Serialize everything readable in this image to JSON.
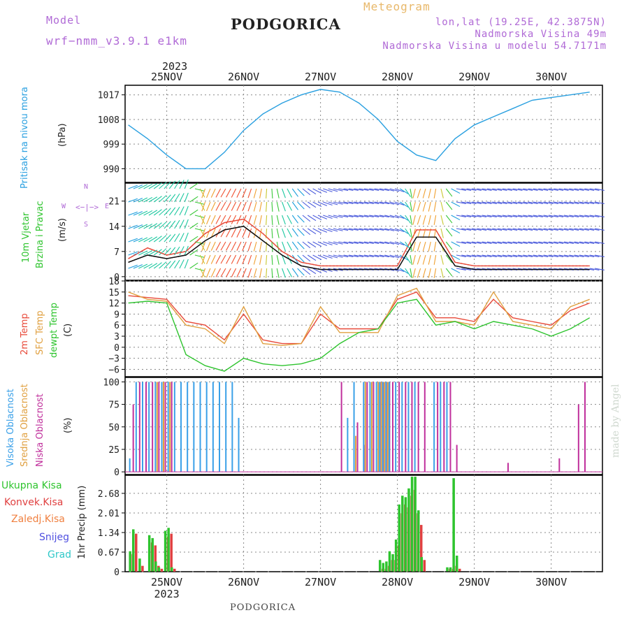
{
  "header": {
    "model_label": "Model",
    "model_name": "wrf−nmm_v3.9.1  e1km",
    "title": "PODGORICA",
    "subtitle": "Meteogram",
    "lonlat": "lon,lat (19.25E, 42.3875N)",
    "elevation": "Nadmorska Visina 49m",
    "model_elevation": "Nadmorska Visina u modelu 54.7171m"
  },
  "footer": {
    "location": "PODGORICA",
    "signature": "made by Angel"
  },
  "colors": {
    "pressure": "#2aa0e0",
    "temp2m": "#e84a3a",
    "sfc": "#e0a040",
    "dewpt": "#2ec42e",
    "high_cloud": "#3aa0e8",
    "mid_cloud": "#e0a040",
    "low_cloud": "#c0309c",
    "total_precip": "#2ec42e",
    "conv_precip": "#e04040",
    "frozen_precip": "#f08040",
    "snow": "#5050e0",
    "grad": "#30c8c8",
    "wind_speed": "#111111",
    "wind_gust": "#e84a3a"
  },
  "chart_data": [
    {
      "panel": "pressure",
      "type": "line",
      "top_axis": {
        "year": "2023",
        "days": [
          "25NOV",
          "26NOV",
          "27NOV",
          "28NOV",
          "29NOV",
          "30NOV"
        ]
      },
      "ylabel": [
        "Pritisak na nivou mora",
        "(hPa)"
      ],
      "yticks": [
        990,
        999,
        1008,
        1017
      ],
      "ylim": [
        985,
        1020.5
      ],
      "x_hours": [
        0,
        6,
        12,
        18,
        24,
        30,
        36,
        42,
        48,
        54,
        60,
        66,
        72,
        78,
        84,
        90,
        96,
        102,
        108,
        114,
        120,
        126,
        132,
        138,
        144
      ],
      "series": [
        {
          "values": [
            1006,
            1001,
            995,
            990,
            990,
            996,
            1004,
            1010,
            1014,
            1017,
            1019,
            1018,
            1014,
            1008,
            1000,
            995,
            993,
            1001,
            1006,
            1009,
            1012,
            1015,
            1016,
            1017,
            1018
          ]
        }
      ]
    },
    {
      "panel": "wind",
      "type": "line",
      "ylabel": [
        "10m Vjetar",
        "Brzina i Pravac",
        "(m/s)"
      ],
      "compass": [
        "W",
        "N",
        "E",
        "S"
      ],
      "yticks": [
        0,
        7,
        14,
        21
      ],
      "ylim": [
        -1,
        26
      ],
      "x_hours": [
        0,
        6,
        12,
        18,
        24,
        30,
        36,
        42,
        48,
        54,
        60,
        66,
        72,
        78,
        84,
        90,
        96,
        102,
        108,
        114,
        120,
        126,
        132,
        138,
        144
      ],
      "series": [
        {
          "values": [
            4,
            6,
            5,
            6,
            10,
            13,
            14,
            10,
            6,
            3,
            2,
            2,
            2,
            2,
            2,
            11,
            11,
            3,
            2,
            2,
            2,
            2,
            2,
            2,
            2
          ]
        },
        {
          "values": [
            5,
            8,
            6,
            7,
            12,
            15,
            16,
            12,
            7,
            4,
            3,
            3,
            3,
            3,
            3,
            13,
            13,
            4,
            3,
            3,
            3,
            3,
            3,
            3,
            3
          ]
        }
      ],
      "wind_direction_deg": [
        70,
        60,
        40,
        20,
        200,
        210,
        205,
        190,
        160,
        130,
        110,
        100,
        100,
        100,
        110,
        200,
        190,
        100,
        100,
        100,
        100,
        100,
        100,
        100,
        100
      ]
    },
    {
      "panel": "temperature",
      "type": "line",
      "ylabel": [
        "2m Temp",
        "SFC Temp",
        "dewpt Temp",
        "(C)"
      ],
      "yticks": [
        -6,
        -3,
        0,
        3,
        6,
        9,
        12,
        15,
        18
      ],
      "ylim": [
        -8,
        18
      ],
      "x_hours": [
        0,
        6,
        12,
        18,
        24,
        30,
        36,
        42,
        48,
        54,
        60,
        66,
        72,
        78,
        84,
        90,
        96,
        102,
        108,
        114,
        120,
        126,
        132,
        138,
        144
      ],
      "series": [
        {
          "name": "2m Temp",
          "values": [
            14,
            13.5,
            13,
            7,
            6,
            2,
            9,
            2,
            1,
            1,
            9,
            5,
            5,
            5,
            13,
            15,
            8,
            8,
            7,
            13,
            8,
            7,
            6,
            10,
            12
          ]
        },
        {
          "name": "SFC Temp",
          "values": [
            15,
            13,
            12.5,
            6,
            5,
            1,
            11,
            1,
            0.5,
            1,
            11,
            4,
            4,
            4,
            14,
            16,
            7,
            7,
            6,
            15,
            7,
            6,
            5,
            11,
            13
          ]
        },
        {
          "name": "dewpt Temp",
          "values": [
            12,
            12.5,
            12,
            -2,
            -5,
            -6.5,
            -3,
            -4.5,
            -5,
            -4.5,
            -3,
            1,
            4,
            5,
            12,
            13,
            6,
            7,
            5,
            7,
            6,
            5,
            3,
            5,
            8
          ]
        }
      ]
    },
    {
      "panel": "cloud",
      "type": "bar",
      "ylabel": [
        "Visoka Oblacnost",
        "Srednja Oblacnost",
        "Niska Oblacnost",
        "(%)"
      ],
      "yticks": [
        0,
        25,
        50,
        75,
        100
      ],
      "ylim": [
        -3,
        105
      ],
      "x_hours": [
        1,
        3,
        5,
        7,
        9,
        11,
        13,
        15,
        17,
        19,
        21,
        23,
        25,
        27,
        29,
        31,
        33,
        35,
        66,
        69,
        71,
        73,
        74,
        76,
        78,
        79,
        80,
        81,
        82,
        84,
        86,
        88,
        90,
        92,
        96,
        98,
        100,
        102,
        106,
        118,
        134,
        140,
        142
      ],
      "series": [
        {
          "name": "Visoka Oblacnost",
          "values": [
            0,
            0,
            0,
            0,
            100,
            100,
            100,
            0,
            0,
            0,
            0,
            0,
            0,
            0,
            0,
            0,
            0,
            0,
            0,
            0,
            40,
            0,
            100,
            100,
            100,
            100,
            100,
            100,
            0,
            0,
            0,
            0,
            0,
            0,
            0,
            0,
            0,
            0,
            0,
            0,
            0,
            0,
            0
          ]
        },
        {
          "name": "Srednja Oblacnost",
          "values": [
            15,
            100,
            100,
            100,
            100,
            100,
            100,
            100,
            100,
            100,
            100,
            100,
            100,
            100,
            100,
            100,
            100,
            60,
            0,
            60,
            100,
            0,
            100,
            100,
            100,
            100,
            100,
            100,
            100,
            100,
            100,
            100,
            100,
            0,
            100,
            100,
            100,
            0,
            0,
            0,
            0,
            0,
            0
          ]
        },
        {
          "name": "Niska Oblacnost",
          "values": [
            75,
            100,
            100,
            100,
            100,
            100,
            100,
            0,
            0,
            0,
            0,
            0,
            0,
            0,
            0,
            0,
            0,
            0,
            100,
            0,
            55,
            30,
            100,
            100,
            100,
            100,
            100,
            100,
            100,
            100,
            100,
            100,
            100,
            100,
            100,
            100,
            100,
            30,
            0,
            10,
            15,
            75,
            100
          ]
        }
      ]
    },
    {
      "panel": "precip",
      "type": "bar",
      "ylabel": [
        "1hr Precip (mm)"
      ],
      "legend": [
        "Ukupna Kisa",
        "Konvek.Kisa",
        "Zaledj.Kisa",
        "Snijeg",
        "Grad"
      ],
      "bottom_axis": {
        "days": [
          "25NOV",
          "26NOV",
          "27NOV",
          "28NOV",
          "29NOV",
          "30NOV"
        ],
        "year": "2023"
      },
      "yticks": [
        0,
        0.67,
        1.34,
        2.01,
        2.68
      ],
      "ylim": [
        0,
        3.3
      ],
      "x_hours": [
        1,
        2,
        4,
        7,
        8,
        9,
        10,
        12,
        13,
        14,
        18,
        19,
        20,
        21,
        79,
        80,
        81,
        82,
        83,
        84,
        85,
        86,
        87,
        88,
        89,
        90,
        91,
        92,
        100,
        101,
        102,
        103
      ],
      "series": [
        {
          "name": "Ukupna Kisa",
          "values": [
            0.7,
            1.45,
            0.45,
            1.25,
            1.15,
            0.35,
            0.15,
            1.4,
            1.5,
            0.15,
            0,
            0,
            0,
            0,
            0.4,
            0.3,
            0.35,
            0.7,
            0.6,
            1.1,
            2.3,
            2.6,
            2.55,
            2.85,
            3.25,
            3.25,
            2.1,
            0.5,
            0.15,
            0.15,
            3.2,
            0.55
          ]
        },
        {
          "name": "Konvek.Kisa",
          "values": [
            0.6,
            1.3,
            0.2,
            1.0,
            0.9,
            0.2,
            0.1,
            1.2,
            1.3,
            0.1,
            0,
            0,
            0,
            0,
            0.1,
            0.1,
            0.2,
            0.4,
            0.4,
            0.9,
            2.0,
            2.3,
            2.2,
            2.6,
            2.8,
            2.0,
            1.6,
            0.4,
            0.1,
            0.1,
            0.2,
            0.1
          ]
        }
      ]
    }
  ]
}
